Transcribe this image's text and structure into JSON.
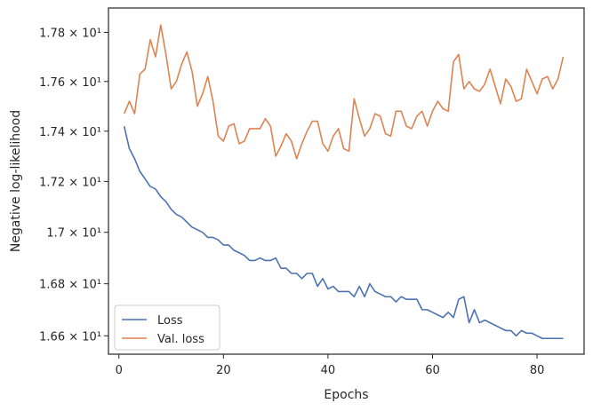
{
  "chart_data": {
    "type": "line",
    "xlabel": "Epochs",
    "ylabel": "Negative log-likelihood",
    "xlim": [
      -2,
      89
    ],
    "ylim": [
      16.53,
      17.9
    ],
    "yscale": "log",
    "grid": false,
    "legend_position": "lower-left",
    "x_ticks": [
      0,
      20,
      40,
      60,
      80
    ],
    "y_ticks": [
      {
        "value": 16.6,
        "label": "1.66 × 10¹"
      },
      {
        "value": 16.8,
        "label": "1.68 × 10¹"
      },
      {
        "value": 17.0,
        "label": "1.7 × 10¹"
      },
      {
        "value": 17.2,
        "label": "1.72 × 10¹"
      },
      {
        "value": 17.4,
        "label": "1.74 × 10¹"
      },
      {
        "value": 17.6,
        "label": "1.76 × 10¹"
      },
      {
        "value": 17.8,
        "label": "1.78 × 10¹"
      }
    ],
    "x": [
      1,
      2,
      3,
      4,
      5,
      6,
      7,
      8,
      9,
      10,
      11,
      12,
      13,
      14,
      15,
      16,
      17,
      18,
      19,
      20,
      21,
      22,
      23,
      24,
      25,
      26,
      27,
      28,
      29,
      30,
      31,
      32,
      33,
      34,
      35,
      36,
      37,
      38,
      39,
      40,
      41,
      42,
      43,
      44,
      45,
      46,
      47,
      48,
      49,
      50,
      51,
      52,
      53,
      54,
      55,
      56,
      57,
      58,
      59,
      60,
      61,
      62,
      63,
      64,
      65,
      66,
      67,
      68,
      69,
      70,
      71,
      72,
      73,
      74,
      75,
      76,
      77,
      78,
      79,
      80,
      81,
      82,
      83,
      84,
      85
    ],
    "series": [
      {
        "name": "Loss",
        "color": "#4c72b0",
        "values": [
          17.42,
          17.33,
          17.29,
          17.24,
          17.21,
          17.18,
          17.17,
          17.14,
          17.12,
          17.09,
          17.07,
          17.06,
          17.04,
          17.02,
          17.01,
          17.0,
          16.98,
          16.98,
          16.97,
          16.95,
          16.95,
          16.93,
          16.92,
          16.91,
          16.89,
          16.89,
          16.9,
          16.89,
          16.89,
          16.9,
          16.86,
          16.86,
          16.84,
          16.84,
          16.82,
          16.84,
          16.84,
          16.79,
          16.82,
          16.78,
          16.79,
          16.77,
          16.77,
          16.77,
          16.75,
          16.79,
          16.75,
          16.8,
          16.77,
          16.76,
          16.75,
          16.75,
          16.73,
          16.75,
          16.74,
          16.74,
          16.74,
          16.7,
          16.7,
          16.69,
          16.68,
          16.67,
          16.69,
          16.67,
          16.74,
          16.75,
          16.65,
          16.7,
          16.65,
          16.66,
          16.65,
          16.64,
          16.63,
          16.62,
          16.62,
          16.6,
          16.62,
          16.61,
          16.61,
          16.6,
          16.59,
          16.59,
          16.59,
          16.59,
          16.59
        ]
      },
      {
        "name": "Val. loss",
        "color": "#dd8452",
        "values": [
          17.47,
          17.52,
          17.47,
          17.63,
          17.65,
          17.77,
          17.7,
          17.83,
          17.71,
          17.57,
          17.6,
          17.67,
          17.72,
          17.64,
          17.5,
          17.55,
          17.62,
          17.52,
          17.38,
          17.36,
          17.42,
          17.43,
          17.35,
          17.36,
          17.41,
          17.41,
          17.41,
          17.45,
          17.42,
          17.3,
          17.34,
          17.39,
          17.36,
          17.29,
          17.35,
          17.4,
          17.44,
          17.44,
          17.35,
          17.32,
          17.38,
          17.41,
          17.33,
          17.32,
          17.53,
          17.45,
          17.38,
          17.41,
          17.47,
          17.46,
          17.39,
          17.38,
          17.48,
          17.48,
          17.42,
          17.41,
          17.46,
          17.48,
          17.42,
          17.48,
          17.52,
          17.49,
          17.48,
          17.68,
          17.71,
          17.57,
          17.6,
          17.57,
          17.56,
          17.59,
          17.65,
          17.58,
          17.51,
          17.61,
          17.58,
          17.52,
          17.53,
          17.65,
          17.6,
          17.55,
          17.61,
          17.62,
          17.57,
          17.61,
          17.7
        ]
      }
    ]
  }
}
